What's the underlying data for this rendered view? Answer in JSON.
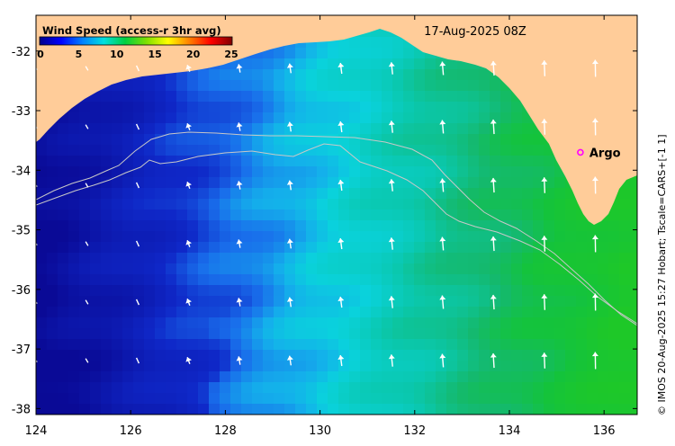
{
  "colorbar": {
    "title": "Wind Speed (access-r 3hr avg)",
    "ticks": [
      "0",
      "5",
      "10",
      "15",
      "20",
      "25"
    ],
    "stops": [
      "#00008b",
      "#0000ff",
      "#0080ff",
      "#00e0e0",
      "#00d040",
      "#80e000",
      "#ffff00",
      "#ff8000",
      "#ff0000",
      "#800000"
    ]
  },
  "date_label": "17-Aug-2025 08Z",
  "marker": {
    "label": "Argo",
    "lon": 135.5,
    "lat": -33.7,
    "color": "#ff00ff"
  },
  "credit": "© IMOS 20-Aug-2025 15:27 Hobart; Tscale=CARS+[-1 1]",
  "axes": {
    "lon_range": [
      124,
      136.7
    ],
    "lat_range": [
      -38.1,
      -31.4
    ],
    "x_ticks": [
      "124",
      "126",
      "128",
      "130",
      "132",
      "134",
      "136"
    ],
    "y_ticks": [
      "-32",
      "-33",
      "-34",
      "-35",
      "-36",
      "-37",
      "-38"
    ]
  },
  "colors": {
    "land": "#ffcc99",
    "arrow": "#ffffff",
    "isobath": "#c8c8c8"
  }
}
